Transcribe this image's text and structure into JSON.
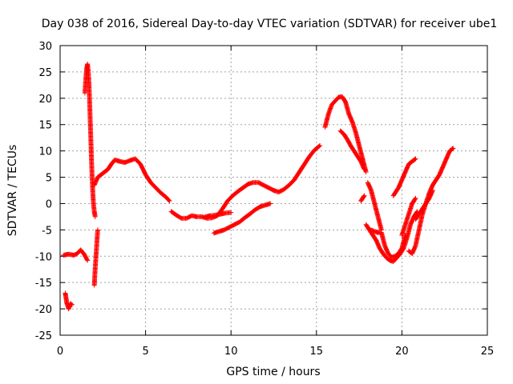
{
  "chart_data": {
    "type": "scatter",
    "title": "Day 038 of 2016, Sidereal Day-to-day VTEC variation (SDTVAR) for receiver ube1",
    "xlabel": "GPS time / hours",
    "ylabel": "SDTVAR / TECUs",
    "xlim": [
      0,
      25
    ],
    "ylim": [
      -25,
      30
    ],
    "xticks": [
      0,
      5,
      10,
      15,
      20,
      25
    ],
    "yticks": [
      -25,
      -20,
      -15,
      -10,
      -5,
      0,
      5,
      10,
      15,
      20,
      25,
      30
    ],
    "grid": true,
    "marker": "+",
    "series": [
      {
        "name": "SDTVAR",
        "color": "#ff0000",
        "segments": [
          {
            "x": [
              0.2,
              0.5,
              0.8,
              1.0,
              1.2,
              1.4,
              1.6
            ],
            "y": [
              -9.8,
              -9.6,
              -9.8,
              -9.5,
              -8.8,
              -9.6,
              -10.8
            ]
          },
          {
            "x": [
              0.3,
              0.35,
              0.4,
              0.45,
              0.5,
              0.55,
              0.6,
              0.7
            ],
            "y": [
              -17,
              -18,
              -19,
              -19.5,
              -20,
              -19.5,
              -19,
              -19.2
            ]
          },
          {
            "x": [
              1.45,
              1.5,
              1.55,
              1.6,
              1.65,
              1.7,
              1.75,
              1.8,
              1.85,
              1.9,
              1.95,
              2.0,
              2.05
            ],
            "y": [
              21,
              23.5,
              25.5,
              26.5,
              25,
              22,
              17,
              12,
              7,
              3,
              0,
              -1.5,
              -2.5
            ]
          },
          {
            "x": [
              2.0,
              2.05,
              2.1,
              2.15,
              2.2
            ],
            "y": [
              -15.5,
              -12.5,
              -10,
              -7.5,
              -5
            ]
          },
          {
            "x": [
              2.0,
              2.2,
              2.4,
              2.6,
              2.8,
              3.0,
              3.2,
              3.5,
              3.8,
              4.1,
              4.4,
              4.7,
              5.0,
              5.3,
              5.6,
              5.9,
              6.2,
              6.4
            ],
            "y": [
              3.5,
              5,
              5.5,
              6,
              6.5,
              7.5,
              8.3,
              8,
              7.8,
              8.2,
              8.5,
              7.5,
              5.5,
              4,
              3,
              2,
              1.2,
              0.5
            ]
          },
          {
            "x": [
              6.5,
              6.8,
              7.1,
              7.4,
              7.7,
              8.0,
              8.3,
              8.6,
              8.9,
              9.2,
              9.5,
              9.8,
              10.1,
              10.4,
              10.7,
              11.0,
              11.3,
              11.6,
              11.9,
              12.2,
              12.5,
              12.8,
              13.1,
              13.4,
              13.7,
              14.0,
              14.3,
              14.6,
              14.9,
              15.2
            ],
            "y": [
              -1.5,
              -2.2,
              -2.8,
              -2.8,
              -2.3,
              -2.5,
              -2.5,
              -2.8,
              -2.7,
              -2.3,
              -1,
              0.5,
              1.5,
              2.3,
              3,
              3.7,
              4,
              4,
              3.5,
              3,
              2.5,
              2.2,
              2.7,
              3.5,
              4.5,
              6,
              7.5,
              9,
              10.2,
              11
            ]
          },
          {
            "x": [
              8.5,
              8.8,
              9.1,
              9.4,
              9.7,
              10.0
            ],
            "y": [
              -2.5,
              -2.3,
              -2.2,
              -2,
              -1.8,
              -1.7
            ]
          },
          {
            "x": [
              9.0,
              9.3,
              9.6,
              9.9,
              10.2,
              10.5,
              10.8,
              11.1,
              11.4,
              11.7,
              12.0,
              12.3
            ],
            "y": [
              -5.6,
              -5.3,
              -5,
              -4.5,
              -4,
              -3.5,
              -2.7,
              -2,
              -1.2,
              -0.6,
              -0.3,
              0
            ]
          },
          {
            "x": [
              15.5,
              15.7,
              15.9,
              16.1,
              16.3,
              16.5,
              16.7,
              16.9,
              17.1,
              17.3,
              17.5,
              17.7,
              17.9
            ],
            "y": [
              14.5,
              17,
              18.8,
              19.5,
              20.2,
              20.3,
              19.3,
              17,
              15.5,
              13.5,
              11,
              8.5,
              6
            ]
          },
          {
            "x": [
              16.4,
              16.6,
              16.8,
              17.0,
              17.2,
              17.4,
              17.6,
              17.8
            ],
            "y": [
              13.8,
              13.2,
              12.2,
              11,
              10,
              9,
              8,
              6.5
            ]
          },
          {
            "x": [
              17.6,
              17.8
            ],
            "y": [
              0.5,
              1.5
            ]
          },
          {
            "x": [
              17.9,
              18.1,
              18.3,
              18.5,
              18.7,
              18.9,
              19.1,
              19.3,
              19.5,
              19.7,
              19.9,
              20.1,
              20.3,
              20.5,
              20.7,
              20.9
            ],
            "y": [
              -4,
              -5,
              -6,
              -7,
              -8.5,
              -9.5,
              -10.3,
              -10.8,
              -11,
              -10.3,
              -9.5,
              -8.5,
              -6.5,
              -4,
              -2.5,
              -1.5
            ]
          },
          {
            "x": [
              18.2,
              18.4,
              18.6,
              18.8,
              19.0,
              19.2,
              19.4,
              19.6,
              19.8,
              20.0,
              20.2
            ],
            "y": [
              -5,
              -5.3,
              -5.5,
              -5.5,
              -8,
              -9.5,
              -10.2,
              -10,
              -9.5,
              -8.5,
              -6
            ]
          },
          {
            "x": [
              18.0,
              18.2,
              18.4,
              18.6,
              18.8
            ],
            "y": [
              4,
              2.5,
              0,
              -2.5,
              -5
            ]
          },
          {
            "x": [
              19.5,
              19.8,
              20.0,
              20.2,
              20.4,
              20.6,
              20.8
            ],
            "y": [
              1.5,
              3,
              4.5,
              6,
              7.5,
              8,
              8.5
            ]
          },
          {
            "x": [
              20.0,
              20.2,
              20.4,
              20.6,
              20.8
            ],
            "y": [
              -6,
              -4,
              -2,
              0,
              1
            ]
          },
          {
            "x": [
              20.4,
              20.6,
              20.8,
              21.0,
              21.2,
              21.4,
              21.6,
              21.8,
              22.0,
              22.2,
              22.4,
              22.6,
              22.8,
              23.0
            ],
            "y": [
              -9,
              -9.5,
              -8,
              -5,
              -2,
              0,
              2,
              3.5,
              4.5,
              5.5,
              7,
              8.5,
              10,
              10.5
            ]
          },
          {
            "x": [
              20.8,
              21.0,
              21.2,
              21.4,
              21.6,
              21.8
            ],
            "y": [
              -3,
              -2,
              -1,
              0,
              1,
              2.5
            ]
          }
        ]
      }
    ]
  }
}
